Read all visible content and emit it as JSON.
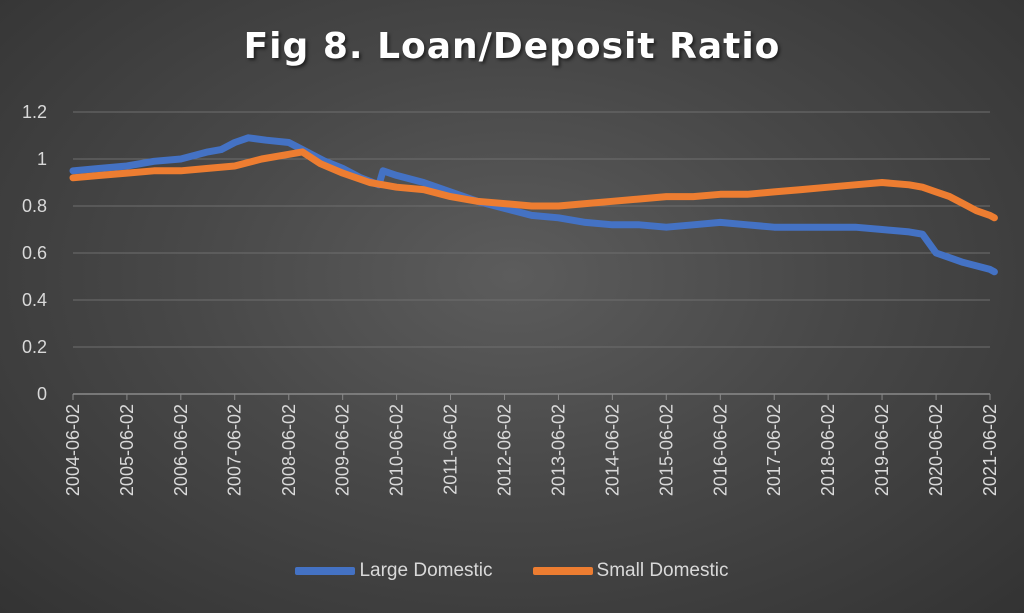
{
  "chart_data": {
    "type": "line",
    "title": "Fig 8. Loan/Deposit Ratio",
    "xlabel": "",
    "ylabel": "",
    "ylim": [
      0,
      1.2
    ],
    "yticks": [
      "0",
      "0.2",
      "0.4",
      "0.6",
      "0.8",
      "1",
      "1.2"
    ],
    "x_tick_labels": [
      "2004-06-02",
      "2005-06-02",
      "2006-06-02",
      "2007-06-02",
      "2008-06-02",
      "2009-06-02",
      "2010-06-02",
      "2011-06-02",
      "2012-06-02",
      "2013-06-02",
      "2014-06-02",
      "2015-06-02",
      "2016-06-02",
      "2017-06-02",
      "2018-06-02",
      "2019-06-02",
      "2020-06-02",
      "2021-06-02"
    ],
    "x_range": [
      "2004-06-02",
      "2021-06-02"
    ],
    "grid": "horizontal",
    "legend": "bottom",
    "series": [
      {
        "name": "Large Domestic",
        "color": "#4472c4",
        "points": [
          [
            "2004-06-02",
            0.95
          ],
          [
            "2004-12-02",
            0.96
          ],
          [
            "2005-06-02",
            0.97
          ],
          [
            "2005-12-02",
            0.99
          ],
          [
            "2006-06-02",
            1.0
          ],
          [
            "2006-12-02",
            1.03
          ],
          [
            "2007-03-02",
            1.04
          ],
          [
            "2007-06-02",
            1.07
          ],
          [
            "2007-09-02",
            1.09
          ],
          [
            "2008-01-02",
            1.08
          ],
          [
            "2008-06-02",
            1.07
          ],
          [
            "2008-10-02",
            1.03
          ],
          [
            "2009-02-02",
            0.99
          ],
          [
            "2009-06-02",
            0.96
          ],
          [
            "2009-10-02",
            0.92
          ],
          [
            "2010-02-02",
            0.89
          ],
          [
            "2010-03-02",
            0.95
          ],
          [
            "2010-06-02",
            0.93
          ],
          [
            "2010-12-02",
            0.9
          ],
          [
            "2011-06-02",
            0.86
          ],
          [
            "2011-12-02",
            0.82
          ],
          [
            "2012-06-02",
            0.79
          ],
          [
            "2012-12-02",
            0.76
          ],
          [
            "2013-06-02",
            0.75
          ],
          [
            "2013-12-02",
            0.73
          ],
          [
            "2014-06-02",
            0.72
          ],
          [
            "2014-12-02",
            0.72
          ],
          [
            "2015-06-02",
            0.71
          ],
          [
            "2015-12-02",
            0.72
          ],
          [
            "2016-06-02",
            0.73
          ],
          [
            "2016-12-02",
            0.72
          ],
          [
            "2017-06-02",
            0.71
          ],
          [
            "2017-12-02",
            0.71
          ],
          [
            "2018-06-02",
            0.71
          ],
          [
            "2018-12-02",
            0.71
          ],
          [
            "2019-06-02",
            0.7
          ],
          [
            "2019-12-02",
            0.69
          ],
          [
            "2020-03-02",
            0.68
          ],
          [
            "2020-06-02",
            0.6
          ],
          [
            "2020-09-02",
            0.58
          ],
          [
            "2020-12-02",
            0.56
          ],
          [
            "2021-06-02",
            0.53
          ],
          [
            "2021-07-02",
            0.52
          ]
        ]
      },
      {
        "name": "Small Domestic",
        "color": "#ed7d31",
        "points": [
          [
            "2004-06-02",
            0.92
          ],
          [
            "2004-12-02",
            0.93
          ],
          [
            "2005-06-02",
            0.94
          ],
          [
            "2005-12-02",
            0.95
          ],
          [
            "2006-06-02",
            0.95
          ],
          [
            "2006-12-02",
            0.96
          ],
          [
            "2007-06-02",
            0.97
          ],
          [
            "2007-12-02",
            1.0
          ],
          [
            "2008-06-02",
            1.02
          ],
          [
            "2008-09-02",
            1.03
          ],
          [
            "2009-01-02",
            0.98
          ],
          [
            "2009-06-02",
            0.94
          ],
          [
            "2009-12-02",
            0.9
          ],
          [
            "2010-06-02",
            0.88
          ],
          [
            "2010-12-02",
            0.87
          ],
          [
            "2011-06-02",
            0.84
          ],
          [
            "2011-12-02",
            0.82
          ],
          [
            "2012-06-02",
            0.81
          ],
          [
            "2012-12-02",
            0.8
          ],
          [
            "2013-06-02",
            0.8
          ],
          [
            "2013-12-02",
            0.81
          ],
          [
            "2014-06-02",
            0.82
          ],
          [
            "2014-12-02",
            0.83
          ],
          [
            "2015-06-02",
            0.84
          ],
          [
            "2015-12-02",
            0.84
          ],
          [
            "2016-06-02",
            0.85
          ],
          [
            "2016-12-02",
            0.85
          ],
          [
            "2017-06-02",
            0.86
          ],
          [
            "2017-12-02",
            0.87
          ],
          [
            "2018-06-02",
            0.88
          ],
          [
            "2018-12-02",
            0.89
          ],
          [
            "2019-06-02",
            0.9
          ],
          [
            "2019-12-02",
            0.89
          ],
          [
            "2020-03-02",
            0.88
          ],
          [
            "2020-06-02",
            0.86
          ],
          [
            "2020-09-02",
            0.84
          ],
          [
            "2020-12-02",
            0.81
          ],
          [
            "2021-03-02",
            0.78
          ],
          [
            "2021-06-02",
            0.76
          ],
          [
            "2021-07-02",
            0.75
          ]
        ]
      }
    ]
  }
}
